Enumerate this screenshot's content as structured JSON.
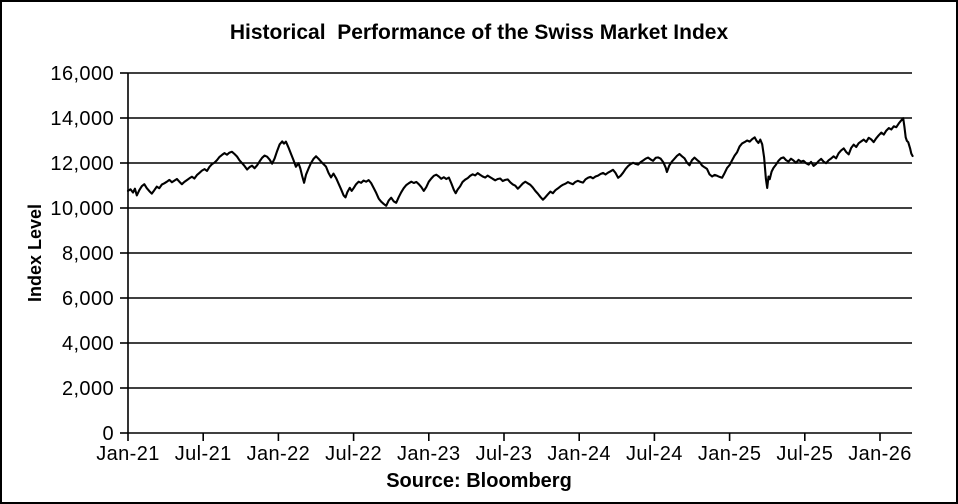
{
  "page": {
    "background": "#ffffff",
    "border_color": "#000000"
  },
  "chart_data": {
    "type": "line",
    "title": "Historical  Performance of the Swiss Market Index",
    "ylabel": "Index Level",
    "source": "Source: Bloomberg",
    "series_name": "Swiss Market Index",
    "line_color": "#000000",
    "grid": "horizontal",
    "legend": "none",
    "ylim": [
      0,
      16000
    ],
    "x_unit": "months since Jan-2021 (x axis spans Jan-21 to ~Mar-26)",
    "y_ticks": [
      {
        "value": 0,
        "label": "0"
      },
      {
        "value": 2000,
        "label": "2,000"
      },
      {
        "value": 4000,
        "label": "4,000"
      },
      {
        "value": 6000,
        "label": "6,000"
      },
      {
        "value": 8000,
        "label": "8,000"
      },
      {
        "value": 10000,
        "label": "10,000"
      },
      {
        "value": 12000,
        "label": "12,000"
      },
      {
        "value": 14000,
        "label": "14,000"
      },
      {
        "value": 16000,
        "label": "16,000"
      }
    ],
    "x_ticks": [
      {
        "month": 0,
        "label": "Jan-21"
      },
      {
        "month": 6,
        "label": "Jul-21"
      },
      {
        "month": 12,
        "label": "Jan-22"
      },
      {
        "month": 18,
        "label": "Jul-22"
      },
      {
        "month": 24,
        "label": "Jan-23"
      },
      {
        "month": 30,
        "label": "Jul-23"
      },
      {
        "month": 36,
        "label": "Jan-24"
      },
      {
        "month": 42,
        "label": "Jul-24"
      },
      {
        "month": 48,
        "label": "Jan-25"
      },
      {
        "month": 54,
        "label": "Jul-25"
      },
      {
        "month": 60,
        "label": "Jan-26"
      }
    ],
    "points": [
      [
        0.0,
        10760
      ],
      [
        0.2,
        10830
      ],
      [
        0.4,
        10690
      ],
      [
        0.55,
        10860
      ],
      [
        0.7,
        10560
      ],
      [
        0.9,
        10790
      ],
      [
        1.1,
        10970
      ],
      [
        1.3,
        11060
      ],
      [
        1.5,
        10880
      ],
      [
        1.7,
        10750
      ],
      [
        1.9,
        10640
      ],
      [
        2.1,
        10790
      ],
      [
        2.3,
        10950
      ],
      [
        2.5,
        10880
      ],
      [
        2.7,
        11040
      ],
      [
        2.9,
        11100
      ],
      [
        3.1,
        11170
      ],
      [
        3.3,
        11250
      ],
      [
        3.5,
        11140
      ],
      [
        3.7,
        11220
      ],
      [
        3.9,
        11290
      ],
      [
        4.1,
        11170
      ],
      [
        4.3,
        11060
      ],
      [
        4.5,
        11160
      ],
      [
        4.7,
        11240
      ],
      [
        4.9,
        11320
      ],
      [
        5.1,
        11390
      ],
      [
        5.3,
        11310
      ],
      [
        5.5,
        11460
      ],
      [
        5.7,
        11560
      ],
      [
        5.9,
        11660
      ],
      [
        6.1,
        11730
      ],
      [
        6.3,
        11650
      ],
      [
        6.5,
        11830
      ],
      [
        6.7,
        11950
      ],
      [
        6.9,
        12020
      ],
      [
        7.1,
        12130
      ],
      [
        7.3,
        12270
      ],
      [
        7.5,
        12360
      ],
      [
        7.7,
        12440
      ],
      [
        7.9,
        12370
      ],
      [
        8.1,
        12460
      ],
      [
        8.3,
        12500
      ],
      [
        8.5,
        12400
      ],
      [
        8.7,
        12290
      ],
      [
        8.9,
        12120
      ],
      [
        9.1,
        11990
      ],
      [
        9.3,
        11860
      ],
      [
        9.5,
        11710
      ],
      [
        9.7,
        11820
      ],
      [
        9.9,
        11880
      ],
      [
        10.1,
        11770
      ],
      [
        10.3,
        11900
      ],
      [
        10.5,
        12070
      ],
      [
        10.7,
        12230
      ],
      [
        10.9,
        12330
      ],
      [
        11.1,
        12280
      ],
      [
        11.3,
        12150
      ],
      [
        11.5,
        11970
      ],
      [
        11.7,
        12200
      ],
      [
        11.9,
        12530
      ],
      [
        12.1,
        12830
      ],
      [
        12.3,
        12960
      ],
      [
        12.45,
        12860
      ],
      [
        12.6,
        12950
      ],
      [
        12.8,
        12700
      ],
      [
        13.0,
        12420
      ],
      [
        13.2,
        12140
      ],
      [
        13.4,
        11830
      ],
      [
        13.6,
        11990
      ],
      [
        13.75,
        11760
      ],
      [
        13.9,
        11420
      ],
      [
        14.05,
        11120
      ],
      [
        14.2,
        11480
      ],
      [
        14.4,
        11750
      ],
      [
        14.6,
        12000
      ],
      [
        14.8,
        12180
      ],
      [
        15.0,
        12300
      ],
      [
        15.2,
        12190
      ],
      [
        15.4,
        12060
      ],
      [
        15.6,
        11950
      ],
      [
        15.8,
        11840
      ],
      [
        16.0,
        11560
      ],
      [
        16.2,
        11360
      ],
      [
        16.4,
        11530
      ],
      [
        16.6,
        11330
      ],
      [
        16.8,
        11080
      ],
      [
        17.0,
        10830
      ],
      [
        17.2,
        10560
      ],
      [
        17.35,
        10470
      ],
      [
        17.5,
        10700
      ],
      [
        17.7,
        10900
      ],
      [
        17.85,
        10760
      ],
      [
        18.0,
        10880
      ],
      [
        18.2,
        11060
      ],
      [
        18.4,
        11170
      ],
      [
        18.6,
        11120
      ],
      [
        18.8,
        11220
      ],
      [
        19.0,
        11170
      ],
      [
        19.2,
        11240
      ],
      [
        19.4,
        11110
      ],
      [
        19.6,
        10890
      ],
      [
        19.8,
        10670
      ],
      [
        20.0,
        10420
      ],
      [
        20.2,
        10280
      ],
      [
        20.4,
        10180
      ],
      [
        20.6,
        10100
      ],
      [
        20.8,
        10330
      ],
      [
        21.0,
        10460
      ],
      [
        21.2,
        10300
      ],
      [
        21.4,
        10230
      ],
      [
        21.6,
        10480
      ],
      [
        21.8,
        10700
      ],
      [
        22.0,
        10880
      ],
      [
        22.2,
        11020
      ],
      [
        22.4,
        11100
      ],
      [
        22.6,
        11170
      ],
      [
        22.8,
        11110
      ],
      [
        23.0,
        11160
      ],
      [
        23.2,
        11060
      ],
      [
        23.4,
        10930
      ],
      [
        23.6,
        10760
      ],
      [
        23.8,
        10930
      ],
      [
        24.0,
        11170
      ],
      [
        24.2,
        11310
      ],
      [
        24.4,
        11430
      ],
      [
        24.6,
        11480
      ],
      [
        24.8,
        11400
      ],
      [
        25.0,
        11300
      ],
      [
        25.2,
        11370
      ],
      [
        25.4,
        11290
      ],
      [
        25.6,
        11350
      ],
      [
        25.8,
        11090
      ],
      [
        26.0,
        10800
      ],
      [
        26.15,
        10660
      ],
      [
        26.3,
        10820
      ],
      [
        26.5,
        10960
      ],
      [
        26.7,
        11160
      ],
      [
        26.9,
        11260
      ],
      [
        27.1,
        11330
      ],
      [
        27.3,
        11430
      ],
      [
        27.5,
        11500
      ],
      [
        27.7,
        11450
      ],
      [
        27.9,
        11550
      ],
      [
        28.1,
        11470
      ],
      [
        28.3,
        11400
      ],
      [
        28.5,
        11350
      ],
      [
        28.7,
        11440
      ],
      [
        28.9,
        11370
      ],
      [
        29.1,
        11300
      ],
      [
        29.3,
        11230
      ],
      [
        29.5,
        11290
      ],
      [
        29.7,
        11310
      ],
      [
        29.9,
        11200
      ],
      [
        30.1,
        11250
      ],
      [
        30.3,
        11270
      ],
      [
        30.5,
        11140
      ],
      [
        30.7,
        11050
      ],
      [
        30.9,
        10990
      ],
      [
        31.1,
        10860
      ],
      [
        31.3,
        10970
      ],
      [
        31.5,
        11090
      ],
      [
        31.7,
        11170
      ],
      [
        31.9,
        11100
      ],
      [
        32.1,
        11030
      ],
      [
        32.3,
        10910
      ],
      [
        32.5,
        10760
      ],
      [
        32.7,
        10640
      ],
      [
        32.9,
        10500
      ],
      [
        33.1,
        10370
      ],
      [
        33.3,
        10480
      ],
      [
        33.5,
        10610
      ],
      [
        33.7,
        10730
      ],
      [
        33.9,
        10660
      ],
      [
        34.1,
        10790
      ],
      [
        34.3,
        10870
      ],
      [
        34.5,
        10960
      ],
      [
        34.7,
        11030
      ],
      [
        34.9,
        11080
      ],
      [
        35.1,
        11150
      ],
      [
        35.3,
        11100
      ],
      [
        35.5,
        11060
      ],
      [
        35.7,
        11160
      ],
      [
        35.9,
        11210
      ],
      [
        36.1,
        11160
      ],
      [
        36.3,
        11130
      ],
      [
        36.5,
        11270
      ],
      [
        36.7,
        11340
      ],
      [
        36.9,
        11380
      ],
      [
        37.1,
        11320
      ],
      [
        37.3,
        11400
      ],
      [
        37.5,
        11440
      ],
      [
        37.7,
        11510
      ],
      [
        37.9,
        11560
      ],
      [
        38.1,
        11490
      ],
      [
        38.3,
        11570
      ],
      [
        38.5,
        11630
      ],
      [
        38.7,
        11700
      ],
      [
        38.9,
        11560
      ],
      [
        39.1,
        11340
      ],
      [
        39.3,
        11430
      ],
      [
        39.5,
        11570
      ],
      [
        39.7,
        11740
      ],
      [
        39.9,
        11860
      ],
      [
        40.1,
        11950
      ],
      [
        40.3,
        12010
      ],
      [
        40.5,
        11960
      ],
      [
        40.7,
        11930
      ],
      [
        40.9,
        12040
      ],
      [
        41.1,
        12110
      ],
      [
        41.3,
        12190
      ],
      [
        41.5,
        12240
      ],
      [
        41.7,
        12160
      ],
      [
        41.9,
        12100
      ],
      [
        42.1,
        12230
      ],
      [
        42.3,
        12250
      ],
      [
        42.5,
        12190
      ],
      [
        42.7,
        12040
      ],
      [
        42.9,
        11790
      ],
      [
        43.0,
        11600
      ],
      [
        43.2,
        11900
      ],
      [
        43.4,
        12060
      ],
      [
        43.6,
        12190
      ],
      [
        43.8,
        12320
      ],
      [
        44.0,
        12400
      ],
      [
        44.2,
        12300
      ],
      [
        44.4,
        12210
      ],
      [
        44.6,
        12020
      ],
      [
        44.8,
        11900
      ],
      [
        45.0,
        12130
      ],
      [
        45.2,
        12240
      ],
      [
        45.4,
        12140
      ],
      [
        45.6,
        12050
      ],
      [
        45.8,
        11890
      ],
      [
        46.0,
        11810
      ],
      [
        46.2,
        11740
      ],
      [
        46.4,
        11500
      ],
      [
        46.6,
        11400
      ],
      [
        46.8,
        11470
      ],
      [
        47.0,
        11430
      ],
      [
        47.2,
        11380
      ],
      [
        47.4,
        11340
      ],
      [
        47.6,
        11550
      ],
      [
        47.8,
        11780
      ],
      [
        48.0,
        11910
      ],
      [
        48.2,
        12120
      ],
      [
        48.4,
        12330
      ],
      [
        48.6,
        12480
      ],
      [
        48.8,
        12740
      ],
      [
        49.0,
        12870
      ],
      [
        49.2,
        12930
      ],
      [
        49.4,
        13000
      ],
      [
        49.6,
        12950
      ],
      [
        49.8,
        13060
      ],
      [
        50.0,
        13140
      ],
      [
        50.15,
        12990
      ],
      [
        50.3,
        12890
      ],
      [
        50.45,
        13040
      ],
      [
        50.6,
        12830
      ],
      [
        50.75,
        12250
      ],
      [
        50.9,
        11300
      ],
      [
        51.0,
        10890
      ],
      [
        51.1,
        11400
      ],
      [
        51.2,
        11280
      ],
      [
        51.35,
        11620
      ],
      [
        51.5,
        11780
      ],
      [
        51.7,
        11930
      ],
      [
        51.9,
        12100
      ],
      [
        52.1,
        12210
      ],
      [
        52.3,
        12250
      ],
      [
        52.5,
        12130
      ],
      [
        52.7,
        12060
      ],
      [
        52.9,
        12190
      ],
      [
        53.1,
        12110
      ],
      [
        53.3,
        12010
      ],
      [
        53.5,
        12140
      ],
      [
        53.7,
        12060
      ],
      [
        53.9,
        12100
      ],
      [
        54.1,
        11990
      ],
      [
        54.3,
        11930
      ],
      [
        54.5,
        12050
      ],
      [
        54.7,
        11870
      ],
      [
        54.9,
        11960
      ],
      [
        55.1,
        12090
      ],
      [
        55.3,
        12180
      ],
      [
        55.5,
        12060
      ],
      [
        55.7,
        11990
      ],
      [
        55.9,
        12120
      ],
      [
        56.1,
        12200
      ],
      [
        56.3,
        12300
      ],
      [
        56.5,
        12210
      ],
      [
        56.7,
        12430
      ],
      [
        56.9,
        12560
      ],
      [
        57.1,
        12650
      ],
      [
        57.3,
        12490
      ],
      [
        57.5,
        12380
      ],
      [
        57.7,
        12670
      ],
      [
        57.9,
        12820
      ],
      [
        58.1,
        12710
      ],
      [
        58.3,
        12880
      ],
      [
        58.5,
        12960
      ],
      [
        58.7,
        13040
      ],
      [
        58.9,
        12940
      ],
      [
        59.1,
        13120
      ],
      [
        59.3,
        13050
      ],
      [
        59.5,
        12930
      ],
      [
        59.7,
        13100
      ],
      [
        59.9,
        13230
      ],
      [
        60.1,
        13350
      ],
      [
        60.3,
        13260
      ],
      [
        60.5,
        13440
      ],
      [
        60.7,
        13550
      ],
      [
        60.9,
        13490
      ],
      [
        61.1,
        13630
      ],
      [
        61.3,
        13590
      ],
      [
        61.5,
        13760
      ],
      [
        61.7,
        13900
      ],
      [
        61.85,
        13990
      ],
      [
        61.95,
        13620
      ],
      [
        62.05,
        13140
      ],
      [
        62.15,
        12980
      ],
      [
        62.25,
        12930
      ],
      [
        62.4,
        12650
      ],
      [
        62.5,
        12420
      ],
      [
        62.6,
        12310
      ]
    ]
  }
}
